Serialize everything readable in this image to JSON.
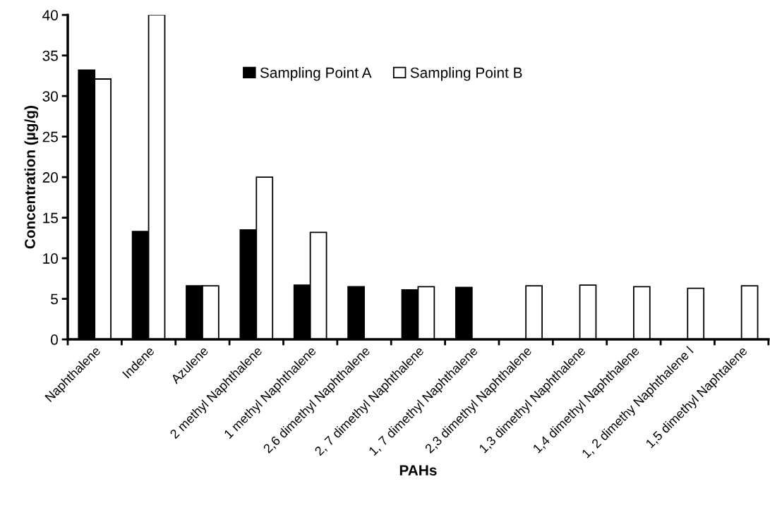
{
  "chart_data": {
    "type": "bar",
    "xlabel": "PAHs",
    "ylabel": "Concentration (µg/g)",
    "categories": [
      "Naphthalene",
      "Indene",
      "Azulene",
      "2 methyl Naphthalene",
      "1 methyl Naphthalene",
      "2,6 dimethyl Naphthalene",
      "2, 7 dimethyl Naphthalene",
      "1, 7 dimethyl Naphthalene",
      "2,3 dimethyl Naphthalene",
      "1,3 dimethyl Naphthalene",
      "1,4 dimethyl Naphthalene",
      "1, 2 dimethy Naphthalene l",
      "1,5 dimethyl Naphtalene"
    ],
    "series": [
      {
        "name": "Sampling Point A",
        "color": "#000000",
        "values": [
          33.2,
          13.3,
          6.6,
          13.5,
          6.7,
          6.5,
          6.1,
          6.4,
          null,
          null,
          null,
          null,
          null
        ]
      },
      {
        "name": "Sampling Point B",
        "color": "#ffffff",
        "values": [
          32.1,
          40.0,
          6.6,
          20.0,
          13.2,
          null,
          6.5,
          null,
          6.6,
          6.7,
          6.5,
          6.3,
          6.6
        ]
      }
    ],
    "ylim": [
      0,
      40
    ],
    "yticks": [
      0,
      5,
      10,
      15,
      20,
      25,
      30,
      35,
      40
    ],
    "grid": false,
    "legend": "top"
  }
}
